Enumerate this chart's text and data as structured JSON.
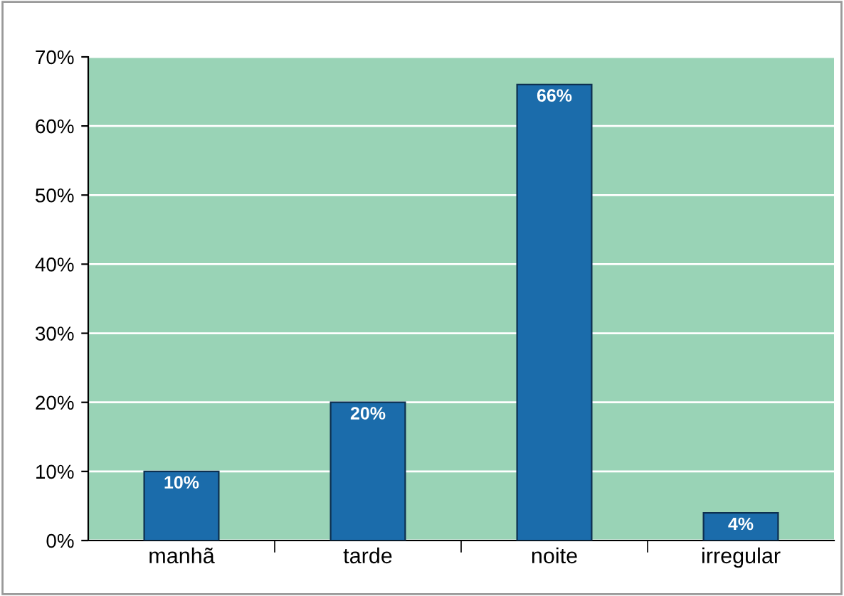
{
  "chart_data": {
    "type": "bar",
    "categories": [
      "manhã",
      "tarde",
      "noite",
      "irregular"
    ],
    "values": [
      10,
      20,
      66,
      4
    ],
    "value_labels": [
      "10%",
      "20%",
      "66%",
      "4%"
    ],
    "color": "#1b6cab",
    "ylim": [
      0,
      70
    ],
    "yticks": [
      {
        "value": 0,
        "label": "0%"
      },
      {
        "value": 10,
        "label": "10%"
      },
      {
        "value": 20,
        "label": "20%"
      },
      {
        "value": 30,
        "label": "30%"
      },
      {
        "value": 40,
        "label": "40%"
      },
      {
        "value": 50,
        "label": "50%"
      },
      {
        "value": 60,
        "label": "60%"
      },
      {
        "value": 70,
        "label": "70%"
      }
    ],
    "grid": "y"
  }
}
